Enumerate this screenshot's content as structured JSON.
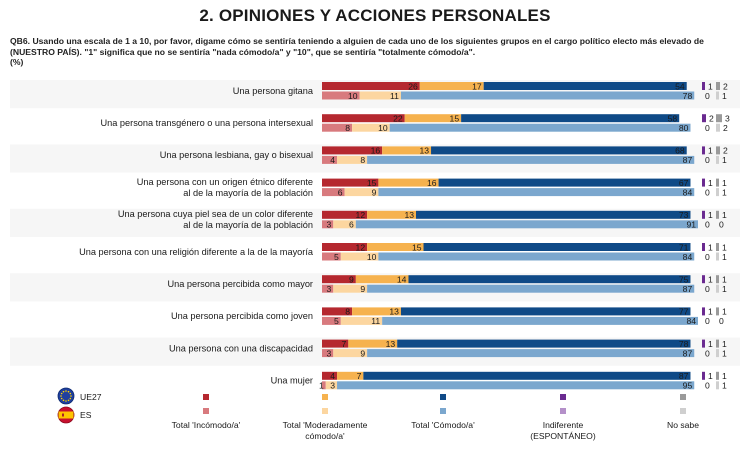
{
  "title": "2. OPINIONES Y ACCIONES PERSONALES",
  "question": "QB6. Usando una escala de 1 a 10, por favor, digame cómo se sentiría teniendo a alguien de cada uno de los siguientes grupos en el cargo político electo más elevado de (NUESTRO PAÍS). \"1\" significa que no se sentiría \"nada cómodo/a\" y \"10\", que se sentiría \"totalmente cómodo/a\".",
  "unit": "(%)",
  "legend_regions": [
    {
      "code": "UE27",
      "icon": "eu-flag-icon"
    },
    {
      "code": "ES",
      "icon": "spain-flag-icon"
    }
  ],
  "colors": {
    "UE27": [
      "#b5282f",
      "#f6b24e",
      "#0f4a87",
      "#6a2a90",
      "#9a9a9a"
    ],
    "ES": [
      "#d87a7e",
      "#fcd6a0",
      "#7ba7ce",
      "#b490c9",
      "#cfcfcf"
    ]
  },
  "chart_data": {
    "type": "bar",
    "orientation": "horizontal",
    "stacked": true,
    "series": [
      {
        "name": "Total 'Incómodo/a'"
      },
      {
        "name": "Total 'Moderadamente cómodo/a'"
      },
      {
        "name": "Total 'Cómodo/a'"
      },
      {
        "name": "Indiferente (ESPONTÁNEO)"
      },
      {
        "name": "No sabe"
      }
    ],
    "categories": [
      {
        "label": [
          "Una persona gitana"
        ],
        "UE27": [
          26,
          17,
          54,
          1,
          2
        ],
        "ES": [
          10,
          11,
          78,
          0,
          1
        ]
      },
      {
        "label": [
          "Una persona transgénero o una persona intersexual"
        ],
        "UE27": [
          22,
          15,
          58,
          2,
          3
        ],
        "ES": [
          8,
          10,
          80,
          0,
          2
        ]
      },
      {
        "label": [
          "Una persona lesbiana, gay o bisexual"
        ],
        "UE27": [
          16,
          13,
          68,
          1,
          2
        ],
        "ES": [
          4,
          8,
          87,
          0,
          1
        ]
      },
      {
        "label": [
          "Una persona con un origen étnico diferente",
          "al de la mayoría de la población"
        ],
        "UE27": [
          15,
          16,
          67,
          1,
          1
        ],
        "ES": [
          6,
          9,
          84,
          0,
          1
        ]
      },
      {
        "label": [
          "Una persona cuya piel sea de un color diferente",
          "al de la mayoría de la población"
        ],
        "UE27": [
          12,
          13,
          73,
          1,
          1
        ],
        "ES": [
          3,
          6,
          91,
          0,
          0
        ]
      },
      {
        "label": [
          "Una persona con una religión diferente a la de la mayoría"
        ],
        "UE27": [
          12,
          15,
          71,
          1,
          1
        ],
        "ES": [
          5,
          10,
          84,
          0,
          1
        ]
      },
      {
        "label": [
          "Una persona percibida como mayor"
        ],
        "UE27": [
          9,
          14,
          75,
          1,
          1
        ],
        "ES": [
          3,
          9,
          87,
          0,
          1
        ]
      },
      {
        "label": [
          "Una persona percibida como joven"
        ],
        "UE27": [
          8,
          13,
          77,
          1,
          1
        ],
        "ES": [
          5,
          11,
          84,
          0,
          0
        ]
      },
      {
        "label": [
          "Una persona con una discapacidad"
        ],
        "UE27": [
          7,
          13,
          78,
          1,
          1
        ],
        "ES": [
          3,
          9,
          87,
          0,
          1
        ]
      },
      {
        "label": [
          "Una mujer"
        ],
        "UE27": [
          4,
          7,
          87,
          1,
          1
        ],
        "ES": [
          1,
          3,
          95,
          0,
          1
        ]
      }
    ],
    "legend": [
      {
        "label": [
          "Total 'Incómodo/a'"
        ]
      },
      {
        "label": [
          "Total 'Moderadamente",
          "cómodo/a'"
        ]
      },
      {
        "label": [
          "Total 'Cómodo/a'"
        ]
      },
      {
        "label": [
          "Indiferente",
          "(ESPONTÁNEO)"
        ]
      },
      {
        "label": [
          "No sabe"
        ]
      }
    ]
  }
}
